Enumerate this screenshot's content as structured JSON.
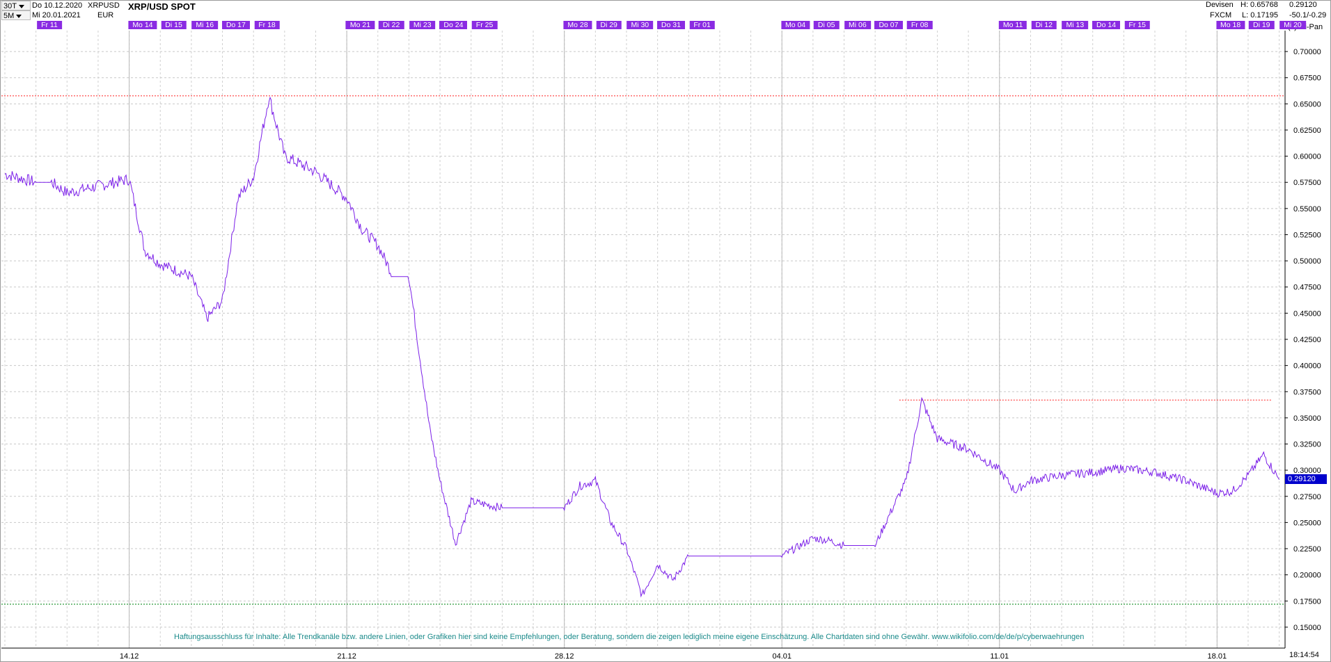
{
  "toolbar": {
    "interval": "30T",
    "from_date": "Do 10.12.2020",
    "symbol": "XRPUSD",
    "range": "5M",
    "to_date": "Mi 20.01.2021",
    "currency": "EUR",
    "title": "XRP/USD SPOT"
  },
  "stats": {
    "market": "Devisen",
    "source": "FXCM",
    "high": "H: 0.65768",
    "low": "L: 0.17195",
    "last": "0.29120",
    "change": "-50.1/-0.29",
    "copyright": "(c)Tai-Pan"
  },
  "day_labels": [
    "Fr 11",
    "Mo 14",
    "Di 15",
    "Mi 16",
    "Do 17",
    "Fr 18",
    "Mo 21",
    "Di 22",
    "Mi 23",
    "Do 24",
    "Fr 25",
    "Mo 28",
    "Di 29",
    "Mi 30",
    "Do 31",
    "Fr 01",
    "Mo 04",
    "Di 05",
    "Mi 06",
    "Do 07",
    "Fr 08",
    "Mo 11",
    "Di 12",
    "Mi 13",
    "Do 14",
    "Fr 15",
    "Mo 18",
    "Di 19",
    "Mi 20"
  ],
  "disclaimer": "Haftungsausschluss für Inhalte: Alle Trendkanäle bzw. andere Linien, oder Grafiken hier sind keine Empfehlungen, oder Beratung, sondern die zeigen lediglich meine eigene Einschätzung. Alle Chartdaten sind ohne Gewähr.  www.wikifolio.com/de/de/p/cyberwaehrungen",
  "time_display": "18:14:54",
  "colors": {
    "line": "#7b1fe8",
    "day_label_bg": "#8a2be2",
    "high_line": "#ff3b3b",
    "low_line": "#2a9a3a",
    "price_badge": "#0000cc"
  },
  "chart_data": {
    "type": "line",
    "title": "XRP/USD SPOT",
    "x_ticks": [
      "14.12",
      "21.12",
      "28.12",
      "04.01",
      "11.01",
      "18.01"
    ],
    "y_ticks": [
      "0.15000",
      "0.17500",
      "0.20000",
      "0.22500",
      "0.25000",
      "0.27500",
      "0.30000",
      "0.32500",
      "0.35000",
      "0.37500",
      "0.40000",
      "0.42500",
      "0.45000",
      "0.47500",
      "0.50000",
      "0.52500",
      "0.55000",
      "0.57500",
      "0.60000",
      "0.62500",
      "0.65000",
      "0.67500",
      "0.70000"
    ],
    "ylim": [
      0.13,
      0.72
    ],
    "grid": true,
    "reference_lines": [
      {
        "value": 0.65768,
        "style": "dotted",
        "color": "red"
      },
      {
        "value": 0.367,
        "style": "dotted",
        "color": "red",
        "from_day": "Fr 08"
      },
      {
        "value": 0.17195,
        "style": "dotted",
        "color": "green"
      }
    ],
    "series": [
      {
        "x": [
          "10.12",
          "11.12",
          "11.12",
          "12.12",
          "14.12",
          "14.12",
          "15.12",
          "16.12",
          "16.12",
          "17.12",
          "17.12",
          "18.12",
          "18.12",
          "19.12",
          "20.12",
          "21.12",
          "21.12",
          "22.12",
          "22.12",
          "23.12",
          "23.12",
          "23.12",
          "24.12",
          "24.12",
          "25.12",
          "26.12",
          "27.12",
          "28.12",
          "28.12",
          "29.12",
          "29.12",
          "30.12",
          "30.12",
          "31.12",
          "31.12",
          "01.01",
          "02.01",
          "03.01",
          "04.01",
          "05.01",
          "05.01",
          "06.01",
          "07.01",
          "07.01",
          "08.01",
          "08.01",
          "09.01",
          "10.01",
          "11.01",
          "11.01",
          "12.01",
          "13.01",
          "14.01",
          "15.01",
          "16.01",
          "17.01",
          "18.01",
          "18.01",
          "19.01",
          "19.01",
          "20.01"
        ],
        "values": [
          0.583,
          0.575,
          0.575,
          0.565,
          0.578,
          0.51,
          0.497,
          0.485,
          0.445,
          0.462,
          0.56,
          0.58,
          0.657,
          0.6,
          0.585,
          0.56,
          0.53,
          0.515,
          0.485,
          0.485,
          0.412,
          0.34,
          0.29,
          0.23,
          0.27,
          0.264,
          0.264,
          0.264,
          0.285,
          0.29,
          0.25,
          0.225,
          0.18,
          0.21,
          0.195,
          0.218,
          0.218,
          0.218,
          0.218,
          0.235,
          0.233,
          0.228,
          0.228,
          0.26,
          0.29,
          0.367,
          0.33,
          0.32,
          0.3,
          0.28,
          0.29,
          0.295,
          0.298,
          0.302,
          0.298,
          0.29,
          0.278,
          0.28,
          0.295,
          0.315,
          0.291
        ]
      }
    ]
  }
}
